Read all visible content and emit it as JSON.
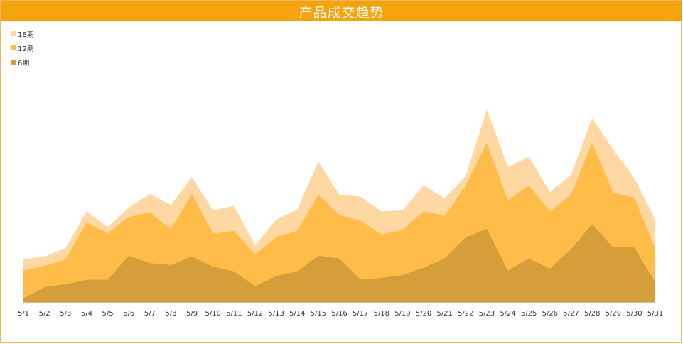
{
  "chart_data": {
    "type": "area",
    "stacked": true,
    "title": "产品成交趋势",
    "legend_position": "top-left",
    "grid": false,
    "categories": [
      "5/1",
      "5/2",
      "5/3",
      "5/4",
      "5/5",
      "5/6",
      "5/7",
      "5/8",
      "5/9",
      "5/10",
      "5/11",
      "5/12",
      "5/13",
      "5/14",
      "5/15",
      "5/16",
      "5/17",
      "5/18",
      "5/19",
      "5/20",
      "5/21",
      "5/22",
      "5/23",
      "5/24",
      "5/25",
      "5/26",
      "5/27",
      "5/28",
      "5/29",
      "5/30",
      "5/31"
    ],
    "series": [
      {
        "name": "6期",
        "color": "#d69e3a",
        "values": [
          5,
          17,
          20,
          25,
          25,
          51,
          43,
          41,
          50,
          39,
          34,
          18,
          29,
          34,
          51,
          48,
          25,
          27,
          30,
          38,
          48,
          71,
          80,
          35,
          48,
          37,
          58,
          85,
          60,
          60,
          22
        ]
      },
      {
        "name": "12期",
        "color": "#ffbc48",
        "values": [
          30,
          23,
          27,
          62,
          50,
          42,
          55,
          39,
          68,
          36,
          44,
          34,
          42,
          44,
          66,
          47,
          64,
          47,
          49,
          61,
          46,
          56,
          93,
          76,
          79,
          62,
          59,
          88,
          59,
          54,
          37
        ]
      },
      {
        "name": "18期",
        "color": "#ffd7a3",
        "values": [
          12,
          10,
          12,
          12,
          7,
          10,
          20,
          26,
          18,
          25,
          27,
          10,
          19,
          23,
          36,
          22,
          26,
          25,
          21,
          28,
          19,
          10,
          36,
          36,
          31,
          21,
          21,
          27,
          47,
          21,
          31
        ]
      }
    ]
  }
}
